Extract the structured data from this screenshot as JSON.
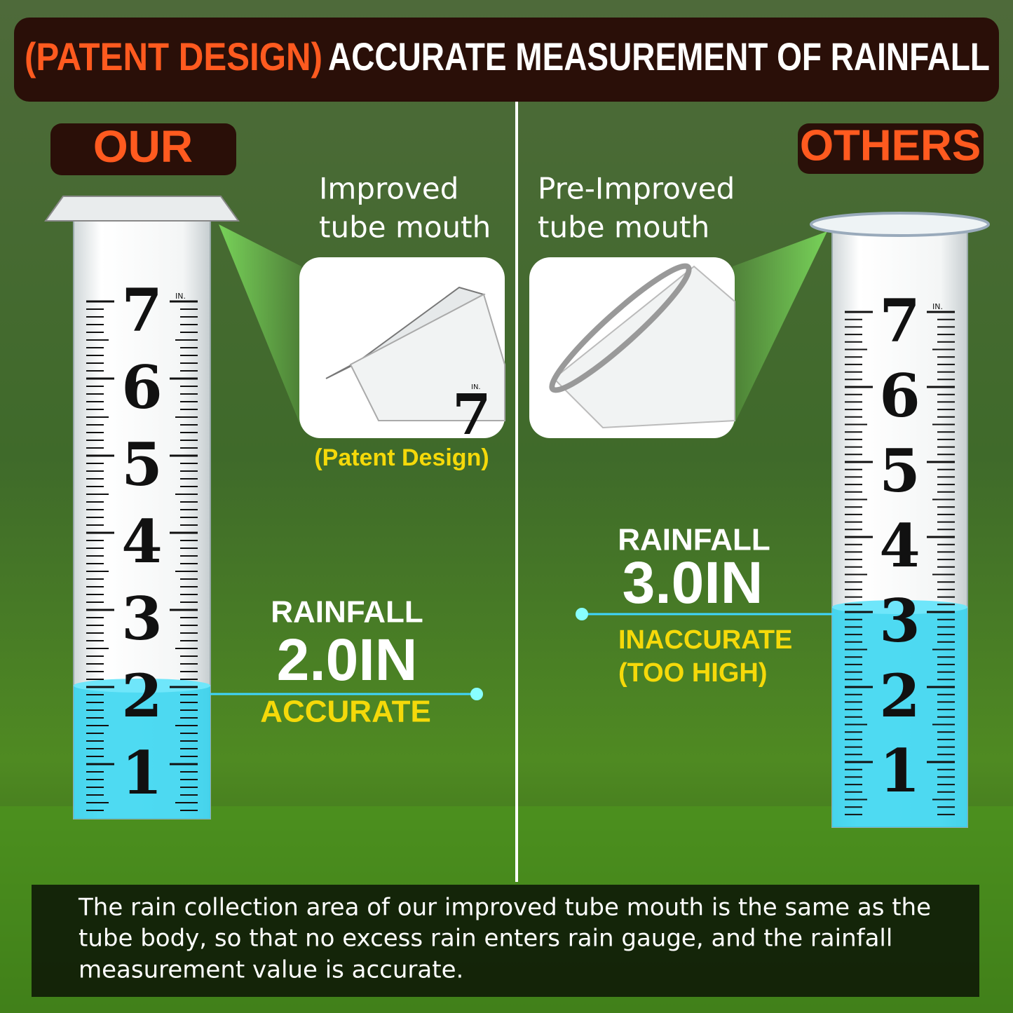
{
  "header": {
    "highlight": "(PATENT DESIGN)",
    "title": "ACCURATE MEASUREMENT OF RAINFALL"
  },
  "gauge_scale": {
    "labels": [
      "7",
      "6",
      "5",
      "4",
      "3",
      "2",
      "1"
    ],
    "unit": "IN."
  },
  "ours": {
    "label": "OUR",
    "callout": [
      "Improved",
      "tube mouth"
    ],
    "note": "(Patent Design)",
    "reading": {
      "title": "RAINFALL",
      "value": "2.0IN",
      "verdict": [
        "ACCURATE"
      ]
    }
  },
  "others": {
    "label": "OTHERS",
    "callout": [
      "Pre-Improved",
      "tube mouth"
    ],
    "reading": {
      "title": "RAINFALL",
      "value": "3.0IN",
      "verdict": [
        "INACCURATE",
        "(TOO HIGH)"
      ]
    }
  },
  "footer": {
    "lines": [
      "The rain collection area of our improved tube mouth is the same as the",
      "tube body, so that no excess rain enters rain gauge, and the rainfall",
      "measurement value is accurate."
    ]
  }
}
